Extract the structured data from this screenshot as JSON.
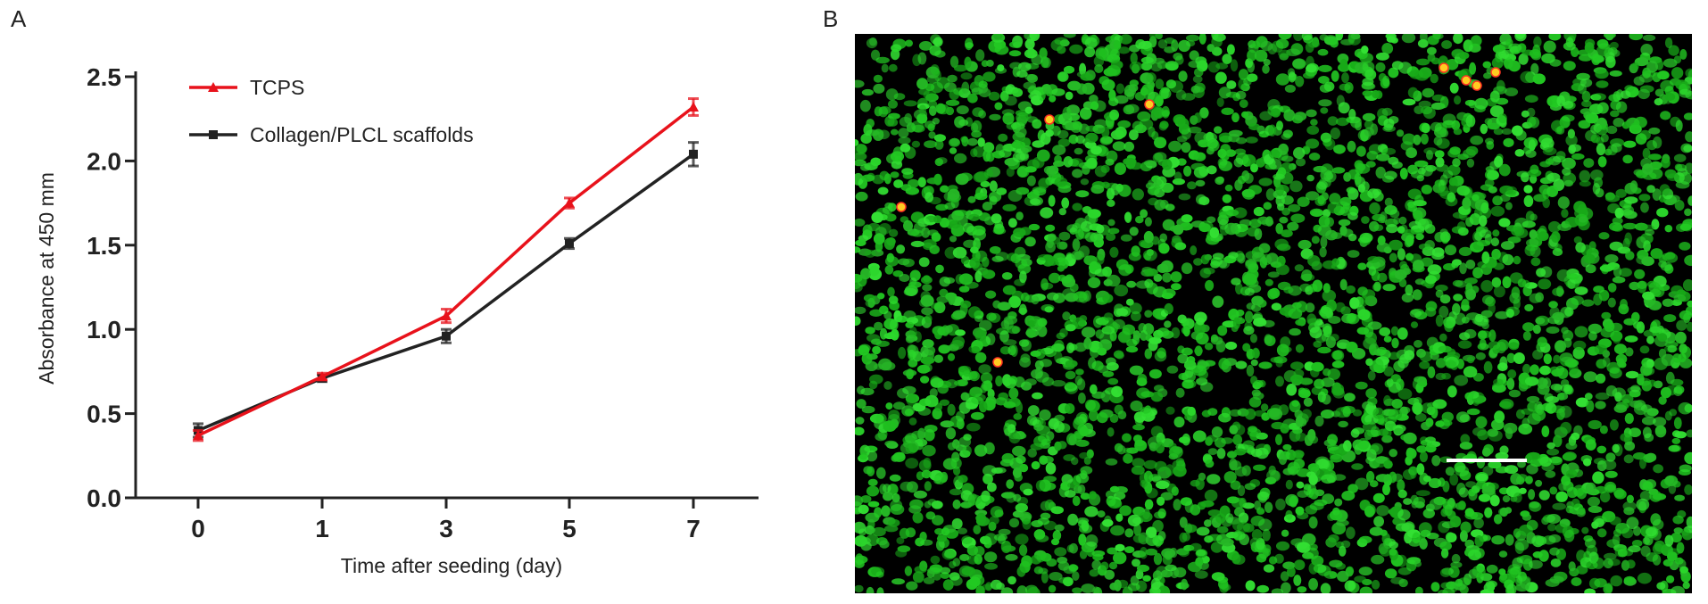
{
  "panels": {
    "a_label": "A",
    "b_label": "B"
  },
  "chart_data": {
    "type": "line",
    "title": "",
    "xlabel": "Time after seeding (day)",
    "ylabel": "Absorbance at 450 mm",
    "categories": [
      "0",
      "1",
      "3",
      "5",
      "7"
    ],
    "ylim": [
      0,
      2.5
    ],
    "yticks": [
      "0.0",
      "0.5",
      "1.0",
      "1.5",
      "2.0",
      "2.5"
    ],
    "grid": false,
    "legend_position": "top-left",
    "series": [
      {
        "name": "TCPS",
        "color": "#e8121b",
        "marker": "triangle",
        "values": [
          0.37,
          0.72,
          1.08,
          1.75,
          2.32
        ],
        "errors": [
          0.03,
          0.02,
          0.04,
          0.03,
          0.05
        ]
      },
      {
        "name": "Collagen/PLCL scaffolds",
        "color": "#222222",
        "marker": "square",
        "values": [
          0.4,
          0.71,
          0.96,
          1.51,
          2.04
        ],
        "errors": [
          0.04,
          0.02,
          0.04,
          0.03,
          0.07
        ]
      }
    ]
  },
  "micrograph": {
    "background_color": "#000000",
    "cell_color": "#22cc22",
    "dead_cell_color": "#ffcc22",
    "scale_bar_color": "#ffffff"
  }
}
